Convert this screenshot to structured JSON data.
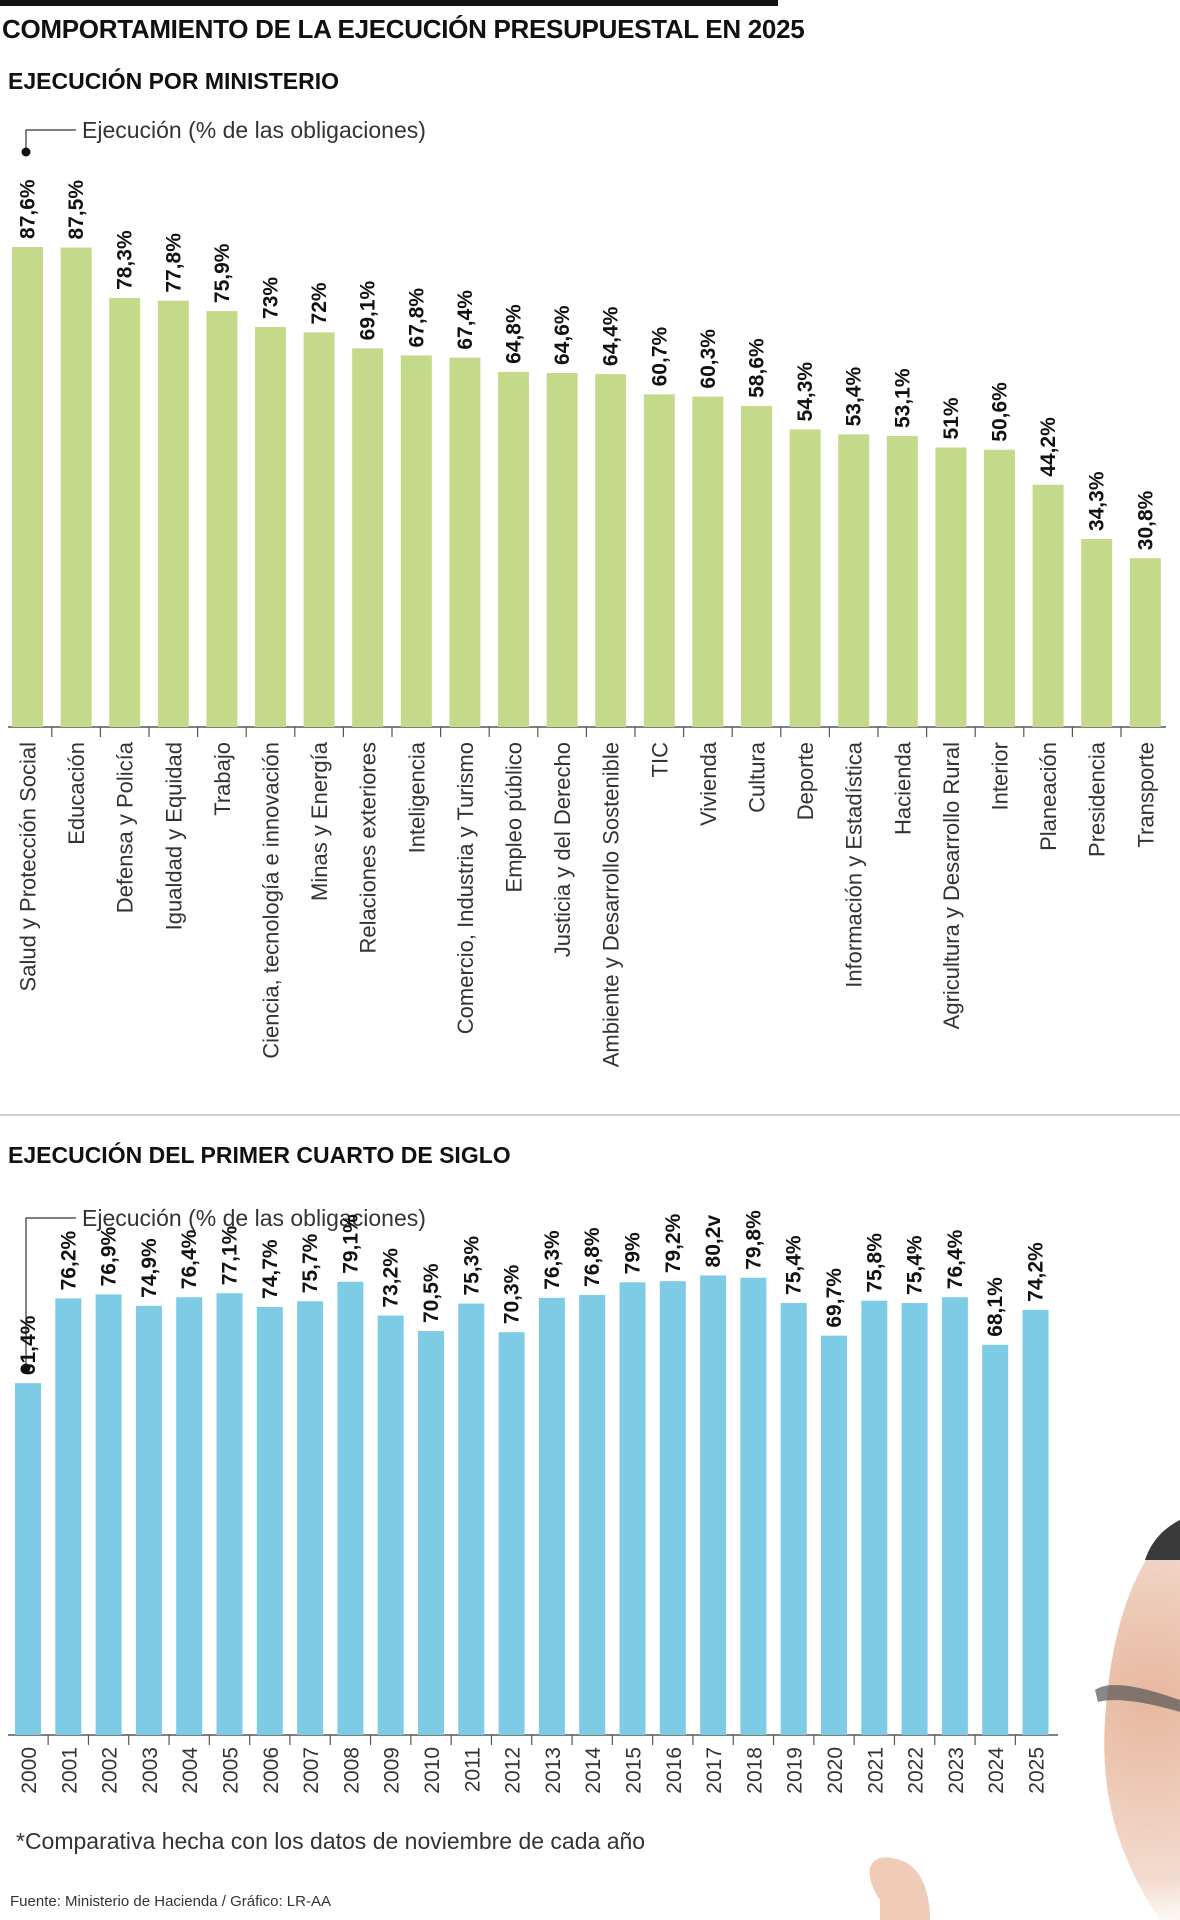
{
  "title": "COMPORTAMIENTO DE LA EJECUCIÓN PRESUPUESTAL EN 2025",
  "footnote": "*Comparativa hecha con los datos de noviembre de cada año",
  "source": "Fuente: Ministerio de Hacienda / Gráfico: LR-AA",
  "colors": {
    "green": "#c5d98a",
    "blue": "#7ecbe6",
    "axis": "#555555"
  },
  "chart_data": [
    {
      "type": "bar",
      "title": "EJECUCIÓN POR MINISTERIO",
      "series_label": "Ejecución (% de las obligaciones)",
      "ylim": [
        0,
        100
      ],
      "categories": [
        "Salud y Protección Social",
        "Educación",
        "Defensa y Policía",
        "Igualdad y Equidad",
        "Trabajo",
        "Ciencia, tecnología e innovación",
        "Minas y Energía",
        "Relaciones exteriores",
        "Inteligencia",
        "Comercio, Industria y Turismo",
        "Empleo público",
        "Justicia y del Derecho",
        "Ambiente y Desarrollo Sostenible",
        "TIC",
        "Vivienda",
        "Cultura",
        "Deporte",
        "Información y Estadística",
        "Hacienda",
        "Agricultura y Desarrollo Rural",
        "Interior",
        "Planeación",
        "Presidencia",
        "Transporte"
      ],
      "values": [
        87.6,
        87.5,
        78.3,
        77.8,
        75.9,
        73,
        72,
        69.1,
        67.8,
        67.4,
        64.8,
        64.6,
        64.4,
        60.7,
        60.3,
        58.6,
        54.3,
        53.4,
        53.1,
        51,
        50.6,
        44.2,
        34.3,
        30.8
      ],
      "labels": [
        "87,6%",
        "87,5%",
        "78,3%",
        "77,8%",
        "75,9%",
        "73%",
        "72%",
        "69,1%",
        "67,8%",
        "67,4%",
        "64,8%",
        "64,6%",
        "64,4%",
        "60,7%",
        "60,3%",
        "58,6%",
        "54,3%",
        "53,4%",
        "53,1%",
        "51%",
        "50,6%",
        "44,2%",
        "34,3%",
        "30,8%"
      ]
    },
    {
      "type": "bar",
      "title": "EJECUCIÓN DEL PRIMER CUARTO DE SIGLO",
      "series_label": "Ejecución (% de las obligaciones)",
      "ylim": [
        0,
        100
      ],
      "categories": [
        "2000",
        "2001",
        "2002",
        "2003",
        "2004",
        "2005",
        "2006",
        "2007",
        "2008",
        "2009",
        "2010",
        "2011",
        "2012",
        "2013",
        "2014",
        "2015",
        "2016",
        "2017",
        "2018",
        "2019",
        "2020",
        "2021",
        "2022",
        "2023",
        "2024",
        "2025"
      ],
      "values": [
        61.4,
        76.2,
        76.9,
        74.9,
        76.4,
        77.1,
        74.7,
        75.7,
        79.1,
        73.2,
        70.5,
        75.3,
        70.3,
        76.3,
        76.8,
        79,
        79.2,
        80.2,
        79.8,
        75.4,
        69.7,
        75.8,
        75.4,
        76.4,
        68.1,
        74.2
      ],
      "labels": [
        "61,4%",
        "76,2%",
        "76,9%",
        "74,9%",
        "76,4%",
        "77,1%",
        "74,7%",
        "75,7%",
        "79,1%",
        "73,2%",
        "70,5%",
        "75,3%",
        "70,3%",
        "76,3%",
        "76,8%",
        "79%",
        "79,2%",
        "80,2v",
        "79,8%",
        "75,4%",
        "69,7%",
        "75,8%",
        "75,4%",
        "76,4%",
        "68,1%",
        "74,2%"
      ]
    }
  ]
}
